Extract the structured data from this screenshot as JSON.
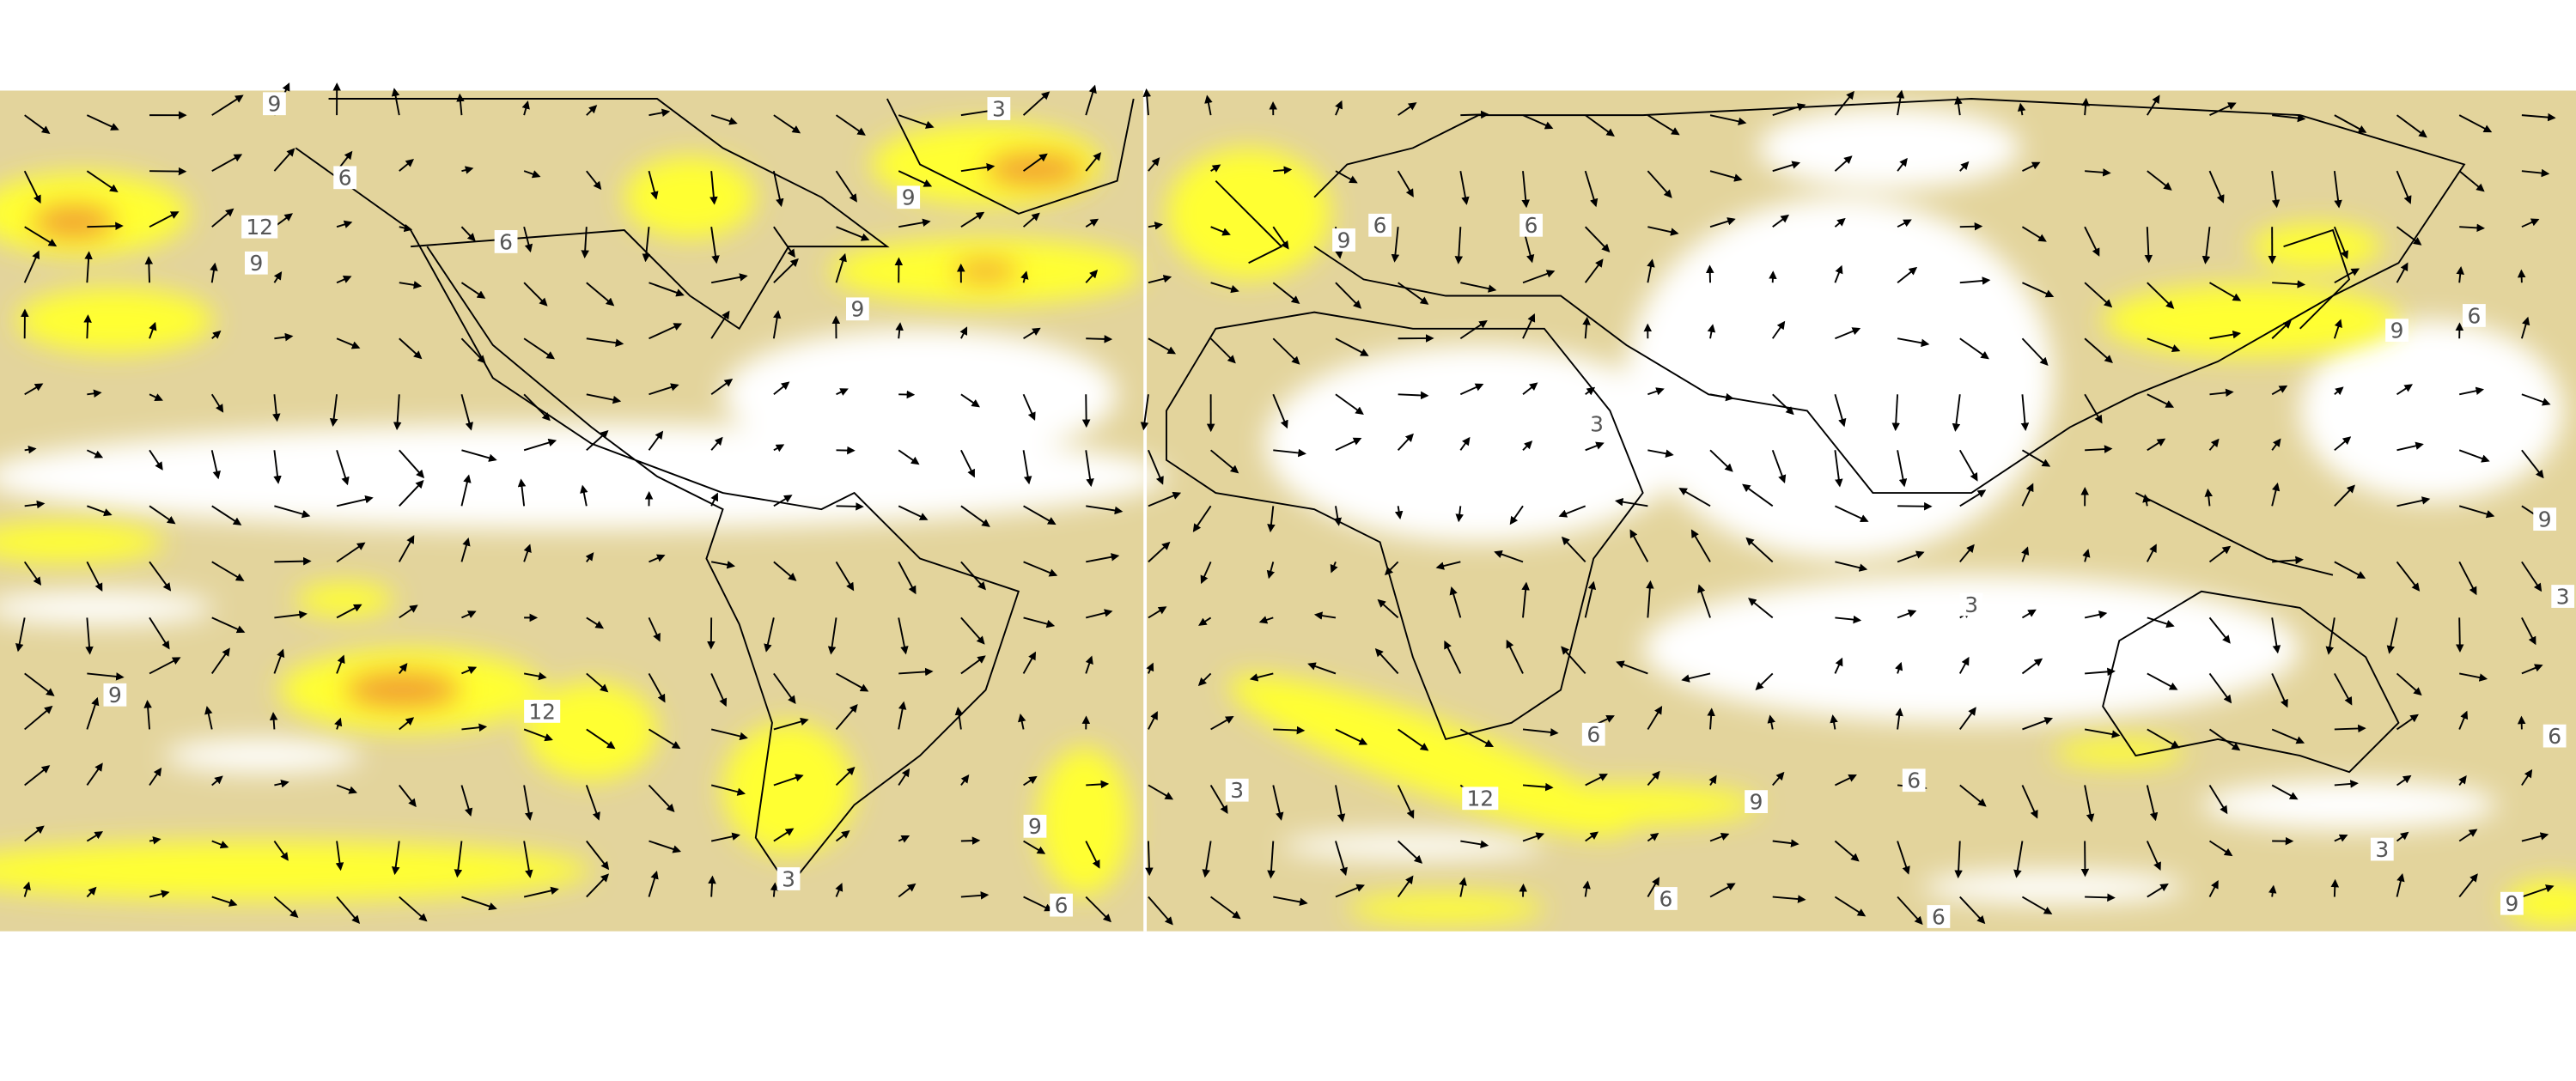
{
  "contour_labels": [
    9,
    6,
    12,
    9,
    6,
    3,
    9,
    9,
    6,
    9,
    6,
    3,
    6,
    9,
    9,
    3,
    3,
    6,
    9,
    12,
    6,
    3,
    12,
    9,
    6,
    9,
    3,
    6,
    6,
    6,
    9,
    3
  ]
}
